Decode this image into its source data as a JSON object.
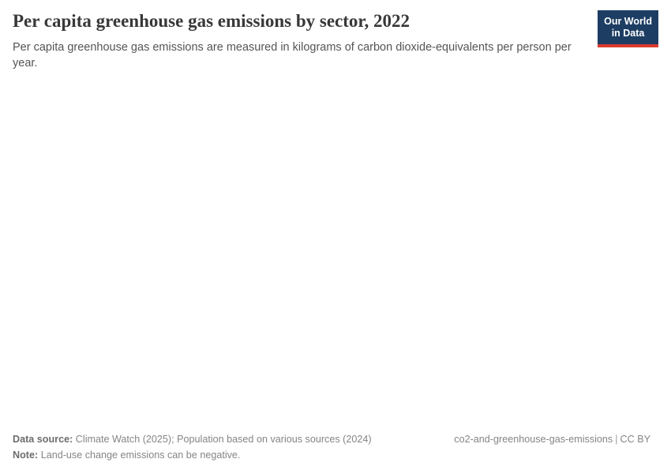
{
  "header": {
    "title": "Per capita greenhouse gas emissions by sector, 2022",
    "subtitle": "Per capita greenhouse gas emissions are measured in kilograms of carbon dioxide-equivalents per person per year.",
    "logo": {
      "line1": "Our World",
      "line2": "in Data"
    }
  },
  "footer": {
    "data_source_label": "Data source:",
    "data_source_value": "Climate Watch (2025); Population based on various sources (2024)",
    "note_label": "Note:",
    "note_value": "Land-use change emissions can be negative.",
    "slug": "co2-and-greenhouse-gas-emissions",
    "separator": "|",
    "license": "CC BY"
  },
  "colors": {
    "logo_navy": "#1d3d63",
    "logo_red": "#dc3a2e",
    "title_text": "#383838",
    "subtitle_text": "#555555",
    "footer_text": "#858585"
  },
  "chart_data": {
    "type": "bar",
    "title": "Per capita greenhouse gas emissions by sector, 2022",
    "subtitle": "Per capita greenhouse gas emissions are measured in kilograms of carbon dioxide-equivalents per person per year.",
    "xlabel": "",
    "ylabel": "",
    "categories": [],
    "values": [],
    "series": [],
    "legend": [],
    "status": "plot area rendered empty in screenshot (no data points, axes, or gridlines visible)"
  }
}
